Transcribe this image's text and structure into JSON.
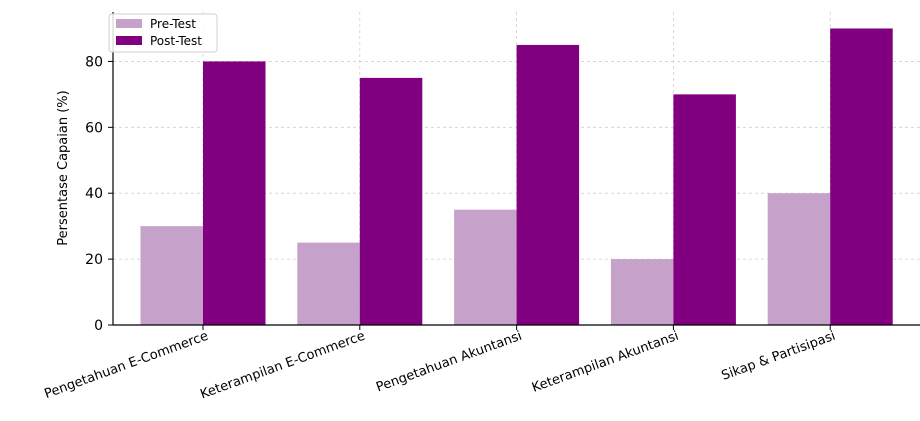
{
  "chart_data": {
    "type": "bar",
    "title": "",
    "xlabel": "",
    "ylabel": "Persentase Capaian (%)",
    "categories": [
      "Pengetahuan E-Commerce",
      "Keterampilan E-Commerce",
      "Pengetahuan Akuntansi",
      "Keterampilan Akuntansi",
      "Sikap & Partisipasi"
    ],
    "series": [
      {
        "name": "Pre-Test",
        "values": [
          30,
          25,
          35,
          20,
          40
        ],
        "color": "#c6a1c9"
      },
      {
        "name": "Post-Test",
        "values": [
          80,
          75,
          85,
          70,
          90
        ],
        "color": "#800080"
      }
    ],
    "ylim": [
      0,
      95
    ],
    "yticks": [
      0,
      20,
      40,
      60,
      80
    ],
    "grid": true,
    "legend_position": "top-left"
  }
}
